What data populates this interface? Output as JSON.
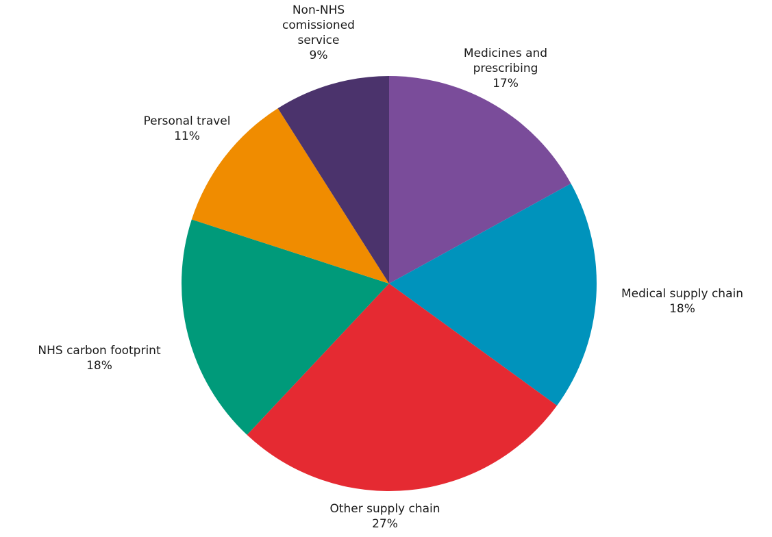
{
  "chart_data": {
    "type": "pie",
    "title": "",
    "start": "12 o'clock",
    "direction": "clockwise",
    "slices": [
      {
        "label": [
          "Medicines and",
          "prescribing"
        ],
        "percent_label": "17%",
        "value": 17,
        "color": "#7a4c9a"
      },
      {
        "label": [
          "Medical supply chain"
        ],
        "percent_label": "18%",
        "value": 18,
        "color": "#0093bc"
      },
      {
        "label": [
          "Other supply chain"
        ],
        "percent_label": "27%",
        "value": 27,
        "color": "#e52a32"
      },
      {
        "label": [
          "NHS carbon footprint"
        ],
        "percent_label": "18%",
        "value": 18,
        "color": "#009a7a"
      },
      {
        "label": [
          "Personal travel"
        ],
        "percent_label": "11%",
        "value": 11,
        "color": "#f08c00"
      },
      {
        "label": [
          "Non-NHS",
          "comissioned",
          "service"
        ],
        "percent_label": "9%",
        "value": 9,
        "color": "#4b336c"
      }
    ]
  }
}
